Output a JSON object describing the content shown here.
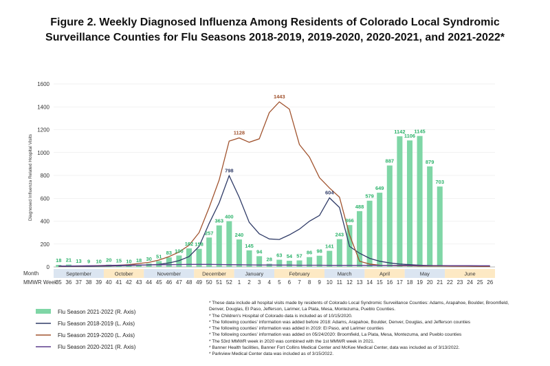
{
  "title": "Figure 2. Weekly Diagnosed Influenza Among Residents of Colorado Local Syndromic Surveillance Counties for Flu Seasons 2018-2019, 2019-2020, 2020-2021, and 2021-2022*",
  "notes": [
    "* These data include all hospital visits made by residents of Colorado Local Syndromic Surveillance Counties: Adams, Arapahoe, Boulder, Broomfield,",
    "Denver, Douglas, El Paso, Jefferson, Larimer, La Plata, Mesa, Montezuma, Pueblo Counties.",
    "* The Children's Hospital of Colorado data is included as of 10/15/2020.",
    "* The following counties' information was added before 2018: Adams, Arapahoe, Boulder, Denver, Douglas, and Jefferson counties",
    "* The following counties' information was added in 2019: El Paso, and Larimer counties",
    "* The following counties' information was added on 05/24/2020: Broomfield, La Plata, Mesa, Montezuma, and Pueblo counties",
    "* The 53rd MMWR week in 2020 was combined with the 1st MMWR week in 2021.",
    "* Banner Health facilities, Banner Fort Collins Medical Center and McKee Medical Center, data was included as of 3/13/2022.",
    "* Parkview Medical Center data was included as of 3/15/2022."
  ],
  "chart_data": {
    "type": "bar",
    "ylabel": "Diagnosed Influenza Related Hospital Visits",
    "ylim": [
      0,
      1600
    ],
    "yticks": [
      0,
      200,
      400,
      600,
      800,
      1000,
      1200,
      1400,
      1600
    ],
    "row_labels": {
      "month": "Month",
      "week": "MMWR Week"
    },
    "weeks": [
      "35",
      "36",
      "37",
      "38",
      "39",
      "40",
      "41",
      "42",
      "43",
      "44",
      "45",
      "46",
      "47",
      "48",
      "49",
      "50",
      "51",
      "52",
      "1",
      "2",
      "3",
      "4",
      "5",
      "6",
      "7",
      "8",
      "9",
      "10",
      "11",
      "12",
      "13",
      "14",
      "15",
      "16",
      "17",
      "18",
      "19",
      "20",
      "21",
      "22",
      "23",
      "24",
      "25",
      "26"
    ],
    "months": [
      {
        "name": "September",
        "start": 0,
        "end": 5,
        "color": "#dbe5f1"
      },
      {
        "name": "October",
        "start": 5,
        "end": 9,
        "color": "#fde9c4"
      },
      {
        "name": "November",
        "start": 9,
        "end": 14,
        "color": "#dbe5f1"
      },
      {
        "name": "December",
        "start": 14,
        "end": 18,
        "color": "#fde9c4"
      },
      {
        "name": "January",
        "start": 18,
        "end": 22,
        "color": "#dbe5f1"
      },
      {
        "name": "February",
        "start": 22,
        "end": 27,
        "color": "#fde9c4"
      },
      {
        "name": "March",
        "start": 27,
        "end": 31,
        "color": "#dbe5f1"
      },
      {
        "name": "April",
        "start": 31,
        "end": 35,
        "color": "#fde9c4"
      },
      {
        "name": "May",
        "start": 35,
        "end": 39,
        "color": "#dbe5f1"
      },
      {
        "name": "June",
        "start": 39,
        "end": 44,
        "color": "#fde9c4"
      }
    ],
    "bars": {
      "name": "Flu Season 2021-2022 (R. Axis)",
      "color": "#7fd6a6",
      "label_color": "#2db36b",
      "values": [
        18,
        21,
        13,
        9,
        10,
        20,
        15,
        10,
        18,
        30,
        51,
        83,
        100,
        162,
        158,
        257,
        363,
        400,
        240,
        145,
        94,
        28,
        63,
        54,
        57,
        86,
        98,
        141,
        243,
        366,
        488,
        579,
        649,
        887,
        1142,
        1106,
        1145,
        879,
        703,
        null,
        null,
        null,
        null,
        null
      ]
    },
    "series": [
      {
        "name": "Flu Season 2018-2019 (L. Axis)",
        "color": "#2e3a66",
        "values": [
          5,
          5,
          5,
          5,
          6,
          8,
          10,
          12,
          15,
          18,
          22,
          35,
          55,
          90,
          180,
          380,
          560,
          798,
          610,
          390,
          290,
          245,
          240,
          280,
          330,
          400,
          450,
          604,
          520,
          180,
          120,
          75,
          50,
          35,
          25,
          20,
          15,
          12,
          10,
          10,
          8,
          6,
          5,
          5
        ],
        "labels": {
          "17": "798",
          "27": "604"
        }
      },
      {
        "name": "Flu Season 2019-2020 (L. Axis)",
        "color": "#a0522d",
        "values": [
          6,
          7,
          8,
          9,
          10,
          12,
          15,
          20,
          30,
          40,
          60,
          90,
          130,
          190,
          300,
          520,
          760,
          1100,
          1128,
          1090,
          1120,
          1350,
          1443,
          1380,
          1070,
          960,
          780,
          690,
          610,
          280,
          50,
          25,
          15,
          12,
          10,
          10,
          8,
          8,
          8,
          7,
          6,
          6,
          5,
          5
        ],
        "labels": {
          "18": "1128",
          "22": "1443"
        }
      },
      {
        "name": "Flu Season 2020-2021 (R. Axis)",
        "color": "#5b3a8c",
        "values": [
          8,
          8,
          9,
          10,
          12,
          14,
          15,
          16,
          17,
          18,
          19,
          20,
          21,
          22,
          22,
          22,
          21,
          20,
          19,
          18,
          17,
          17,
          16,
          16,
          15,
          15,
          15,
          14,
          14,
          14,
          14,
          14,
          13,
          13,
          13,
          13,
          12,
          12,
          12,
          11,
          11,
          11,
          10,
          10
        ],
        "labels": {}
      }
    ]
  }
}
